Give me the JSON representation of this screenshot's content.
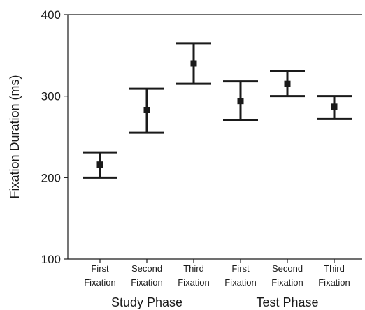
{
  "chart_data": {
    "type": "errorbar",
    "ylabel": "Fixation Duration (ms)",
    "ylim": [
      100,
      400
    ],
    "yticks": [
      100,
      200,
      300,
      400
    ],
    "categories": [
      [
        "First",
        "Fixation"
      ],
      [
        "Second",
        "Fixation"
      ],
      [
        "Third",
        "Fixation"
      ],
      [
        "First",
        "Fixation"
      ],
      [
        "Second",
        "Fixation"
      ],
      [
        "Third",
        "Fixation"
      ]
    ],
    "groups": [
      {
        "label": "Study Phase",
        "span": [
          0,
          2
        ]
      },
      {
        "label": "Test Phase",
        "span": [
          3,
          5
        ]
      }
    ],
    "values": [
      216,
      283,
      340,
      294,
      315,
      287
    ],
    "lower": [
      200,
      255,
      315,
      271,
      300,
      272
    ],
    "upper": [
      231,
      309,
      365,
      318,
      331,
      300
    ],
    "color": "#1a1a1a"
  }
}
